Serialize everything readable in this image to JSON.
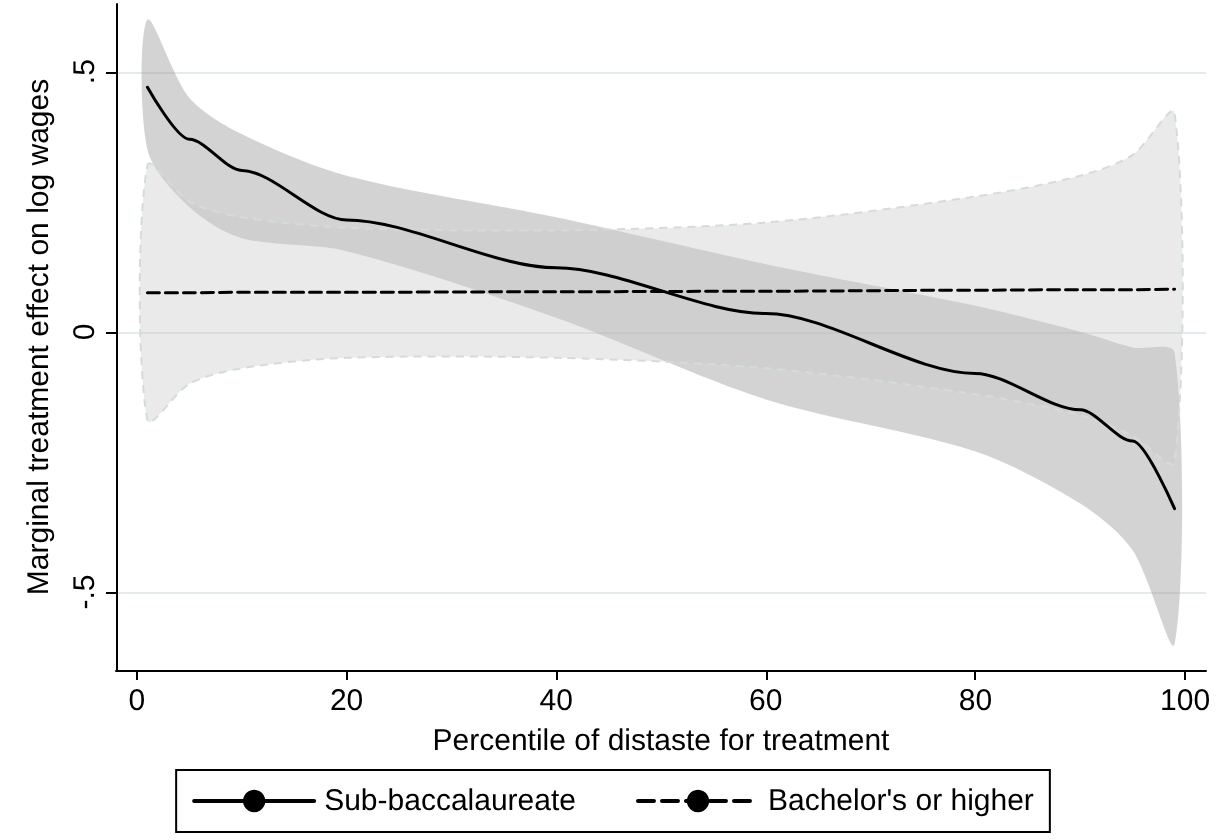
{
  "chart_data": {
    "type": "line",
    "xlabel": "Percentile of distaste for treatment",
    "ylabel": "Marginal treatment effect on log wages",
    "x": [
      1,
      5,
      10,
      20,
      40,
      60,
      80,
      90,
      95,
      99
    ],
    "series": [
      {
        "name": "Sub-baccalaureate",
        "color": "#000000",
        "line_style": "solid",
        "values": [
          0.47,
          0.37,
          0.31,
          0.215,
          0.123,
          0.035,
          -0.08,
          -0.15,
          -0.21,
          -0.34
        ],
        "lower": [
          0.35,
          0.24,
          0.18,
          0.155,
          0.027,
          -0.13,
          -0.23,
          -0.33,
          -0.42,
          -0.6
        ],
        "upper": [
          0.6,
          0.45,
          0.38,
          0.3,
          0.22,
          0.13,
          0.05,
          0.0,
          -0.03,
          -0.04
        ]
      },
      {
        "name": "Bachelor's or higher",
        "color": "#000000",
        "line_style": "dashed",
        "values": [
          0.075,
          0.075,
          0.076,
          0.076,
          0.077,
          0.078,
          0.08,
          0.081,
          0.081,
          0.082
        ],
        "lower": [
          -0.17,
          -0.1,
          -0.07,
          -0.05,
          -0.05,
          -0.07,
          -0.12,
          -0.16,
          -0.2,
          -0.25
        ],
        "upper": [
          0.32,
          0.25,
          0.22,
          0.2,
          0.195,
          0.21,
          0.26,
          0.3,
          0.34,
          0.42
        ]
      }
    ],
    "xlim": [
      -2,
      102
    ],
    "xticks": [
      0,
      20,
      40,
      60,
      80,
      100
    ],
    "ylim": [
      -0.65,
      0.63
    ],
    "yticks": [
      {
        "value": -0.5,
        "label": "-.5"
      },
      {
        "value": 0,
        "label": "0"
      },
      {
        "value": 0.5,
        "label": ".5"
      }
    ],
    "grid": "y",
    "legend": "bottom",
    "marker": "none"
  }
}
